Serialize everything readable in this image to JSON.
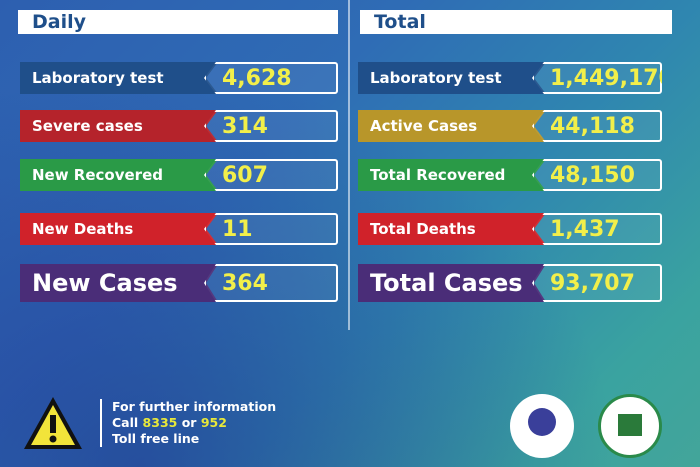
{
  "daily": {
    "title": "Daily",
    "rows": [
      {
        "label": "Laboratory test",
        "value": "4,628",
        "color": "#1f4f8a"
      },
      {
        "label": "Severe cases",
        "value": "314",
        "color": "#b5232b"
      },
      {
        "label": "New Recovered",
        "value": "607",
        "color": "#2a9a47"
      },
      {
        "label": "New Deaths",
        "value": "11",
        "color": "#d0222a"
      },
      {
        "label": "New Cases",
        "value": "364",
        "color": "#4a2d78"
      }
    ]
  },
  "total": {
    "title": "Total",
    "rows": [
      {
        "label": "Laboratory test",
        "value": "1,449,170",
        "color": "#1f4f8a"
      },
      {
        "label": "Active Cases",
        "value": "44,118",
        "color": "#b8962a"
      },
      {
        "label": "Total Recovered",
        "value": "48,150",
        "color": "#2a9a47"
      },
      {
        "label": "Total Deaths",
        "value": "1,437",
        "color": "#d0222a"
      },
      {
        "label": "Total Cases",
        "value": "93,707",
        "color": "#4a2d78"
      }
    ]
  },
  "footer": {
    "line1": "For further information",
    "call": "Call",
    "num1": "8335",
    "or": "or",
    "num2": "952",
    "line3": "Toll free line"
  },
  "colors": {
    "value_text": "#f2ef4a",
    "header_text": "#1f4f8a"
  }
}
